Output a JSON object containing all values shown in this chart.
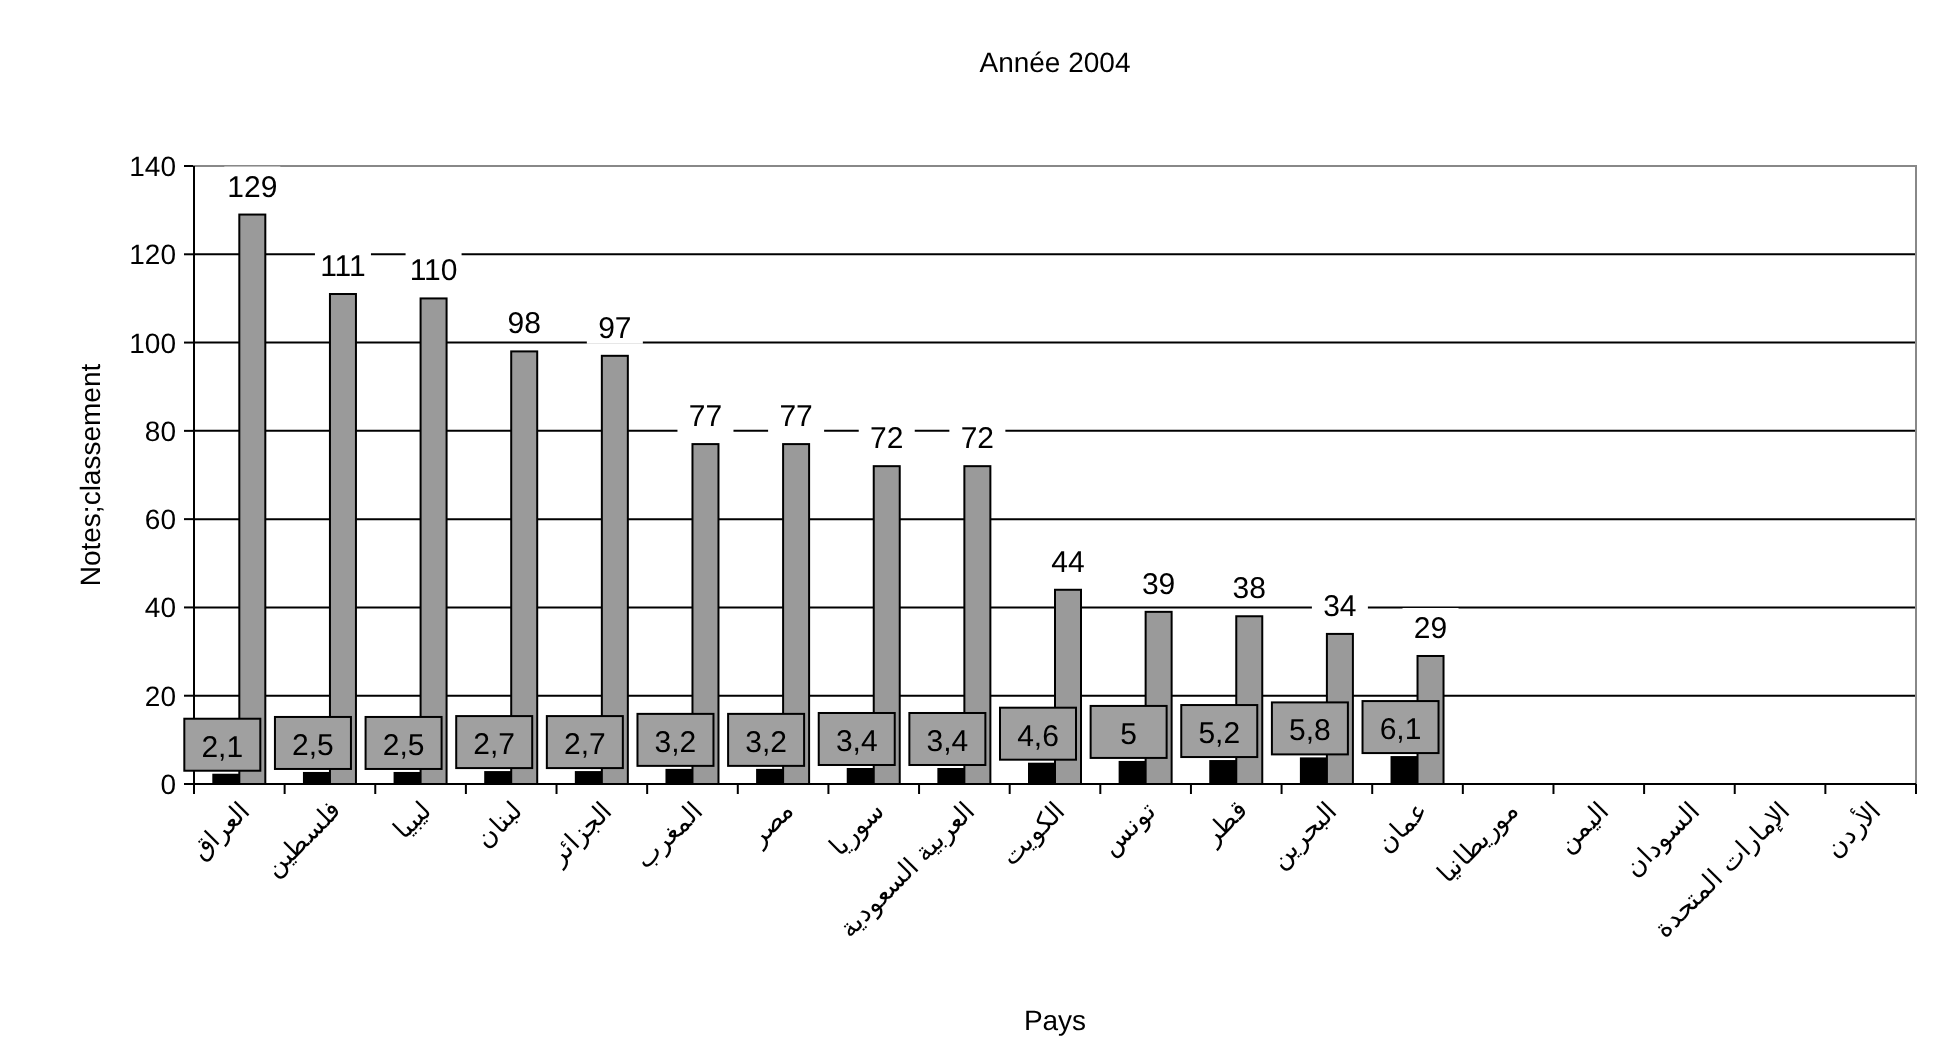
{
  "chart_data": {
    "type": "bar",
    "title": "Année 2004",
    "xlabel": "Pays",
    "ylabel": "Notes;classement",
    "categories": [
      "العراق",
      "فلسطين",
      "ليبيا",
      "لبنان",
      "الجزائر",
      "المغرب",
      "مصر",
      "سوريا",
      "العربية السعودية",
      "الكويت",
      "تونس",
      "قطر",
      "البحرين",
      "عمان",
      "موريطانيا",
      "اليمن",
      "السودان",
      "الإمارات المتحدة",
      "الأردن"
    ],
    "series": [
      {
        "color": "#000000",
        "values": [
          2.1,
          2.5,
          2.5,
          2.7,
          2.7,
          3.2,
          3.2,
          3.4,
          3.4,
          4.6,
          5,
          5.2,
          5.8,
          6.1,
          null,
          null,
          null,
          null,
          null
        ],
        "value_labels": [
          "2,1",
          "2,5",
          "2,5",
          "2,7",
          "2,7",
          "3,2",
          "3,2",
          "3,4",
          "3,4",
          "4,6",
          "5",
          "5,2",
          "5,8",
          "6,1",
          null,
          null,
          null,
          null,
          null
        ]
      },
      {
        "color": "#9a9a9a",
        "values": [
          129,
          111,
          110,
          98,
          97,
          77,
          77,
          72,
          72,
          44,
          39,
          38,
          34,
          29,
          null,
          null,
          null,
          null,
          null
        ],
        "value_labels": [
          "129",
          "111",
          "110",
          "98",
          "97",
          "77",
          "77",
          "72",
          "72",
          "44",
          "39",
          "38",
          "34",
          "29",
          null,
          null,
          null,
          null,
          null
        ]
      }
    ],
    "ylim": [
      0,
      140
    ],
    "yticks": [
      0,
      20,
      40,
      60,
      80,
      100,
      120,
      140
    ],
    "grid": "y"
  }
}
